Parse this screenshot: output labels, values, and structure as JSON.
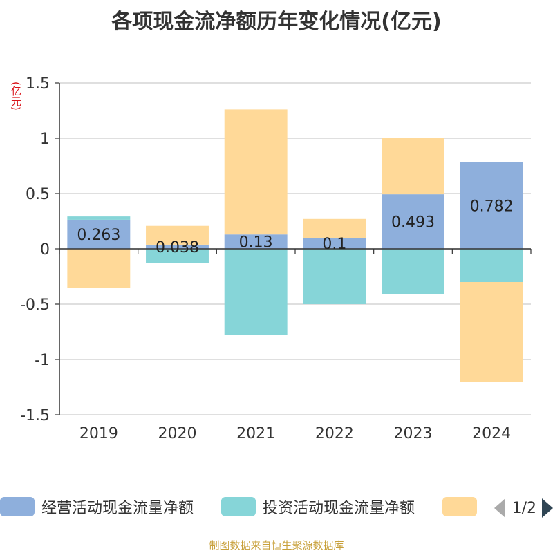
{
  "title": "各项现金流净额历年变化情况(亿元)",
  "unit_label": "(亿元)",
  "source": "制图数据来自恒生聚源数据库",
  "legend": {
    "items": [
      {
        "label": "经营活动现金流量净额",
        "color": "#8eafdc"
      },
      {
        "label": "投资活动现金流量净额",
        "color": "#86d5d8"
      },
      {
        "label": "",
        "color": "#ffd998"
      }
    ],
    "page": "1/2"
  },
  "chart_data": {
    "type": "bar",
    "stacked": true,
    "categories": [
      "2019",
      "2020",
      "2021",
      "2022",
      "2023",
      "2024"
    ],
    "ylim": [
      -1.5,
      1.5
    ],
    "yticks": [
      "1.5",
      "1",
      "0.5",
      "0",
      "-0.5",
      "-1",
      "-1.5"
    ],
    "grid": true,
    "legend_position": "bottom",
    "series": [
      {
        "name": "经营活动现金流量净额",
        "color": "#8eafdc",
        "values": [
          0.263,
          0.038,
          0.13,
          0.1,
          0.493,
          0.782
        ],
        "labels": [
          "0.263",
          "0.038",
          "0.13",
          "0.1",
          "0.493",
          "0.782"
        ]
      },
      {
        "name": "投资活动现金流量净额",
        "color": "#86d5d8",
        "values": [
          0.03,
          -0.13,
          -0.78,
          -0.5,
          -0.41,
          -0.3
        ]
      },
      {
        "color": "#ffd998",
        "values": [
          -0.35,
          0.17,
          1.13,
          0.17,
          0.51,
          -0.9
        ]
      }
    ]
  }
}
